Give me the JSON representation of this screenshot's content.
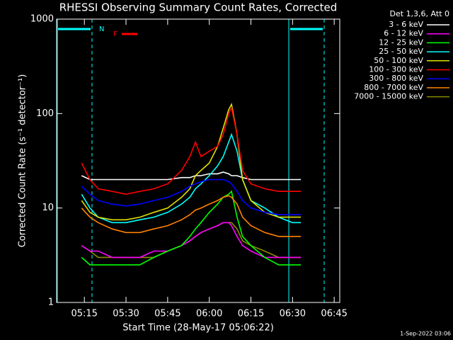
{
  "chart_data": {
    "type": "line",
    "title": "RHESSI Observing Summary Count Rates, Corrected",
    "xlabel": "Start Time (28-May-17 05:06:22)",
    "ylabel": "Corrected Count Rate (s⁻¹ detector⁻¹)",
    "legend_title": "Det 1,3,6, Att 0",
    "annotations": [
      "N",
      "F"
    ],
    "footer": "1-Sep-2022 03:06",
    "log_y": true,
    "ylim": [
      1,
      1000
    ],
    "yticks": [
      1,
      10,
      100,
      1000
    ],
    "xlim": [
      "05:05",
      "06:47"
    ],
    "xticks": [
      "05:15",
      "05:30",
      "05:45",
      "06:00",
      "06:15",
      "06:30",
      "06:45"
    ],
    "x": [
      "05:14",
      "05:17",
      "05:20",
      "05:25",
      "05:30",
      "05:35",
      "05:40",
      "05:45",
      "05:50",
      "05:53",
      "05:55",
      "05:57",
      "06:00",
      "06:03",
      "06:05",
      "06:07",
      "06:08",
      "06:10",
      "06:12",
      "06:15",
      "06:20",
      "06:25",
      "06:30",
      "06:33"
    ],
    "series": [
      {
        "name": "7000 - 15000 keV",
        "color": "#8b8b00",
        "values": [
          4,
          3.5,
          3,
          3,
          3,
          3,
          3,
          3.5,
          4,
          4.5,
          5,
          5.5,
          6,
          6.5,
          7,
          7,
          7,
          6,
          4.5,
          4,
          3.5,
          3,
          3,
          3
        ]
      },
      {
        "name": "3 - 6 keV",
        "color": "#ffffff",
        "values": [
          22,
          20,
          20,
          20,
          20,
          20,
          20,
          20,
          21,
          21,
          22,
          22,
          23,
          23,
          24,
          23,
          22,
          22,
          21,
          20,
          20,
          20,
          20,
          20
        ]
      },
      {
        "name": "6 - 12 keV",
        "color": "#ff00ff",
        "values": [
          4,
          3.5,
          3.5,
          3,
          3,
          3,
          3.5,
          3.5,
          4,
          4.5,
          5,
          5.5,
          6,
          6.5,
          7,
          7,
          6.5,
          5,
          4,
          3.5,
          3,
          3,
          3,
          3
        ]
      },
      {
        "name": "12 - 25 keV",
        "color": "#00ff00",
        "values": [
          3,
          2.5,
          2.5,
          2.5,
          2.5,
          2.5,
          3,
          3.5,
          4,
          5,
          6,
          7,
          9,
          11,
          13,
          14,
          15,
          8,
          5,
          4,
          3,
          2.5,
          2.5,
          2.5
        ]
      },
      {
        "name": "800 - 7000 keV",
        "color": "#ff8000",
        "values": [
          10,
          8,
          7,
          6,
          5.5,
          5.5,
          6,
          6.5,
          7.5,
          8.5,
          9.5,
          10,
          11,
          12,
          13,
          13.5,
          13,
          11,
          8,
          6.5,
          5.5,
          5,
          5,
          5
        ]
      },
      {
        "name": "25 - 50 keV",
        "color": "#00ffff",
        "values": [
          14,
          10,
          8,
          7,
          7,
          7.5,
          8,
          9,
          11,
          13,
          16,
          18,
          22,
          28,
          35,
          50,
          60,
          40,
          20,
          12,
          10,
          8,
          7,
          7
        ]
      },
      {
        "name": "50 - 100 keV",
        "color": "#e0e000",
        "values": [
          12,
          9,
          8,
          7.5,
          7.5,
          8,
          9,
          10,
          13,
          16,
          22,
          25,
          30,
          45,
          70,
          110,
          125,
          60,
          20,
          12,
          9,
          8,
          8,
          8
        ]
      },
      {
        "name": "300 - 800 keV",
        "color": "#0000ff",
        "values": [
          17,
          14,
          12,
          11,
          10.5,
          11,
          12,
          13,
          15,
          17,
          18,
          19,
          20,
          20,
          20,
          19,
          18,
          15,
          12,
          10,
          9,
          8.5,
          8.5,
          8.5
        ]
      },
      {
        "name": "100 - 300 keV",
        "color": "#ff0000",
        "values": [
          30,
          20,
          16,
          15,
          14,
          15,
          16,
          18,
          25,
          35,
          50,
          35,
          40,
          45,
          60,
          100,
          115,
          60,
          25,
          18,
          16,
          15,
          15,
          15
        ]
      }
    ],
    "legend_order": [
      1,
      2,
      3,
      5,
      6,
      8,
      7,
      4,
      0
    ]
  }
}
